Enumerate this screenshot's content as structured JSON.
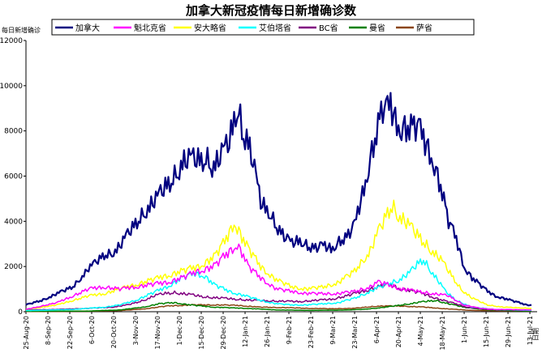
{
  "chart_data": {
    "type": "line",
    "title": "加拿大新冠疫情每日新增确诊数",
    "ylabel": "每日新增确诊",
    "xlabel": "日期",
    "ylim": [
      0,
      12000
    ],
    "yticks": [
      0,
      2000,
      4000,
      6000,
      8000,
      10000,
      12000
    ],
    "grid": false,
    "legend_position": "top",
    "x_tick_labels": [
      "25-Aug-20",
      "8-Sep-20",
      "22-Sep-20",
      "6-Oct-20",
      "20-Oct-20",
      "3-Nov-20",
      "17-Nov-20",
      "1-Dec-20",
      "15-Dec-20",
      "29-Dec-20",
      "12-Jan-21",
      "26-Jan-21",
      "9-Feb-21",
      "23-Feb-21",
      "9-Mar-21",
      "23-Mar-21",
      "6-Apr-21",
      "20-Apr-21",
      "4-May-21",
      "18-May-21",
      "1-Jun-21",
      "15-Jun-21",
      "29-Jun-21",
      "13-Jul-21"
    ],
    "x_tick_days": [
      0,
      14,
      28,
      42,
      56,
      70,
      84,
      98,
      112,
      126,
      140,
      154,
      168,
      182,
      196,
      210,
      224,
      238,
      252,
      266,
      280,
      294,
      308,
      322
    ],
    "x_range_days": [
      0,
      323
    ],
    "series": [
      {
        "name": "加拿大",
        "color": "#000080",
        "width": 2.2,
        "points": [
          [
            0,
            300
          ],
          [
            10,
            500
          ],
          [
            20,
            800
          ],
          [
            30,
            1100
          ],
          [
            40,
            1900
          ],
          [
            50,
            2500
          ],
          [
            55,
            2600
          ],
          [
            60,
            2900
          ],
          [
            70,
            3900
          ],
          [
            78,
            4600
          ],
          [
            84,
            5000
          ],
          [
            90,
            5600
          ],
          [
            95,
            6000
          ],
          [
            100,
            6600
          ],
          [
            105,
            6700
          ],
          [
            110,
            6700
          ],
          [
            115,
            6800
          ],
          [
            120,
            6400
          ],
          [
            126,
            7000
          ],
          [
            130,
            7500
          ],
          [
            134,
            8900
          ],
          [
            136,
            9000
          ],
          [
            138,
            8000
          ],
          [
            141,
            7700
          ],
          [
            145,
            6600
          ],
          [
            150,
            4800
          ],
          [
            155,
            4500
          ],
          [
            160,
            3800
          ],
          [
            165,
            3300
          ],
          [
            170,
            3000
          ],
          [
            175,
            3200
          ],
          [
            180,
            2900
          ],
          [
            185,
            2800
          ],
          [
            190,
            2900
          ],
          [
            195,
            2800
          ],
          [
            200,
            3100
          ],
          [
            205,
            3300
          ],
          [
            210,
            3800
          ],
          [
            215,
            5200
          ],
          [
            220,
            6800
          ],
          [
            225,
            8200
          ],
          [
            228,
            9000
          ],
          [
            230,
            8800
          ],
          [
            233,
            9100
          ],
          [
            236,
            8500
          ],
          [
            240,
            8200
          ],
          [
            245,
            8100
          ],
          [
            250,
            8200
          ],
          [
            255,
            7500
          ],
          [
            260,
            6800
          ],
          [
            265,
            5500
          ],
          [
            270,
            4000
          ],
          [
            275,
            3200
          ],
          [
            280,
            2000
          ],
          [
            285,
            1500
          ],
          [
            290,
            1200
          ],
          [
            295,
            900
          ],
          [
            300,
            700
          ],
          [
            305,
            600
          ],
          [
            310,
            500
          ],
          [
            315,
            400
          ],
          [
            320,
            300
          ],
          [
            323,
            300
          ]
        ]
      },
      {
        "name": "魁北克省",
        "color": "#ff00ff",
        "width": 1.5,
        "points": [
          [
            0,
            100
          ],
          [
            20,
            400
          ],
          [
            30,
            700
          ],
          [
            40,
            1000
          ],
          [
            50,
            1100
          ],
          [
            60,
            1000
          ],
          [
            70,
            1100
          ],
          [
            80,
            1200
          ],
          [
            90,
            1300
          ],
          [
            100,
            1500
          ],
          [
            110,
            1800
          ],
          [
            120,
            2000
          ],
          [
            126,
            2400
          ],
          [
            132,
            2800
          ],
          [
            135,
            3000
          ],
          [
            138,
            2600
          ],
          [
            142,
            2000
          ],
          [
            150,
            1500
          ],
          [
            160,
            1000
          ],
          [
            170,
            900
          ],
          [
            180,
            800
          ],
          [
            190,
            800
          ],
          [
            200,
            800
          ],
          [
            210,
            900
          ],
          [
            220,
            1100
          ],
          [
            225,
            1300
          ],
          [
            232,
            1200
          ],
          [
            240,
            1000
          ],
          [
            250,
            900
          ],
          [
            260,
            800
          ],
          [
            270,
            700
          ],
          [
            280,
            300
          ],
          [
            290,
            150
          ],
          [
            300,
            100
          ],
          [
            323,
            80
          ]
        ]
      },
      {
        "name": "安大略省",
        "color": "#ffff00",
        "width": 1.5,
        "points": [
          [
            0,
            100
          ],
          [
            20,
            300
          ],
          [
            30,
            500
          ],
          [
            40,
            700
          ],
          [
            50,
            800
          ],
          [
            60,
            1000
          ],
          [
            70,
            1200
          ],
          [
            80,
            1400
          ],
          [
            90,
            1600
          ],
          [
            100,
            1800
          ],
          [
            110,
            2000
          ],
          [
            120,
            2400
          ],
          [
            126,
            3000
          ],
          [
            130,
            3500
          ],
          [
            133,
            4000
          ],
          [
            136,
            3600
          ],
          [
            140,
            3000
          ],
          [
            145,
            2500
          ],
          [
            150,
            2000
          ],
          [
            160,
            1400
          ],
          [
            170,
            1100
          ],
          [
            180,
            1000
          ],
          [
            190,
            1100
          ],
          [
            200,
            1300
          ],
          [
            210,
            1800
          ],
          [
            220,
            2700
          ],
          [
            225,
            3500
          ],
          [
            230,
            4200
          ],
          [
            234,
            4700
          ],
          [
            238,
            4300
          ],
          [
            242,
            4000
          ],
          [
            250,
            3400
          ],
          [
            258,
            2800
          ],
          [
            265,
            2300
          ],
          [
            270,
            1800
          ],
          [
            278,
            1000
          ],
          [
            285,
            600
          ],
          [
            295,
            300
          ],
          [
            305,
            200
          ],
          [
            323,
            150
          ]
        ]
      },
      {
        "name": "艾伯塔省",
        "color": "#00ffff",
        "width": 1.5,
        "points": [
          [
            0,
            50
          ],
          [
            30,
            100
          ],
          [
            50,
            200
          ],
          [
            60,
            300
          ],
          [
            70,
            500
          ],
          [
            80,
            800
          ],
          [
            90,
            1100
          ],
          [
            100,
            1500
          ],
          [
            108,
            1700
          ],
          [
            114,
            1600
          ],
          [
            120,
            1200
          ],
          [
            130,
            900
          ],
          [
            140,
            700
          ],
          [
            150,
            500
          ],
          [
            160,
            350
          ],
          [
            170,
            300
          ],
          [
            180,
            300
          ],
          [
            190,
            350
          ],
          [
            200,
            400
          ],
          [
            210,
            600
          ],
          [
            220,
            900
          ],
          [
            230,
            1200
          ],
          [
            238,
            1400
          ],
          [
            245,
            1700
          ],
          [
            250,
            2100
          ],
          [
            254,
            2300
          ],
          [
            258,
            1900
          ],
          [
            262,
            1500
          ],
          [
            268,
            900
          ],
          [
            275,
            500
          ],
          [
            285,
            200
          ],
          [
            300,
            100
          ],
          [
            323,
            60
          ]
        ]
      },
      {
        "name": "BC省",
        "color": "#800080",
        "width": 1.5,
        "points": [
          [
            0,
            80
          ],
          [
            20,
            100
          ],
          [
            40,
            150
          ],
          [
            55,
            200
          ],
          [
            65,
            300
          ],
          [
            75,
            500
          ],
          [
            82,
            700
          ],
          [
            88,
            800
          ],
          [
            95,
            850
          ],
          [
            105,
            750
          ],
          [
            115,
            650
          ],
          [
            125,
            600
          ],
          [
            135,
            550
          ],
          [
            145,
            500
          ],
          [
            155,
            480
          ],
          [
            165,
            460
          ],
          [
            175,
            450
          ],
          [
            185,
            500
          ],
          [
            195,
            550
          ],
          [
            205,
            700
          ],
          [
            215,
            900
          ],
          [
            225,
            1100
          ],
          [
            232,
            1200
          ],
          [
            240,
            1000
          ],
          [
            248,
            900
          ],
          [
            256,
            750
          ],
          [
            264,
            550
          ],
          [
            272,
            400
          ],
          [
            282,
            200
          ],
          [
            295,
            100
          ],
          [
            323,
            60
          ]
        ]
      },
      {
        "name": "曼省",
        "color": "#008000",
        "width": 1.5,
        "points": [
          [
            0,
            20
          ],
          [
            40,
            30
          ],
          [
            60,
            80
          ],
          [
            75,
            200
          ],
          [
            85,
            350
          ],
          [
            95,
            400
          ],
          [
            105,
            300
          ],
          [
            120,
            200
          ],
          [
            140,
            150
          ],
          [
            160,
            80
          ],
          [
            180,
            60
          ],
          [
            200,
            70
          ],
          [
            215,
            100
          ],
          [
            230,
            200
          ],
          [
            245,
            350
          ],
          [
            255,
            450
          ],
          [
            262,
            500
          ],
          [
            270,
            350
          ],
          [
            280,
            200
          ],
          [
            295,
            80
          ],
          [
            323,
            30
          ]
        ]
      },
      {
        "name": "萨省",
        "color": "#8b4513",
        "width": 1.5,
        "points": [
          [
            0,
            10
          ],
          [
            40,
            20
          ],
          [
            60,
            50
          ],
          [
            75,
            120
          ],
          [
            90,
            250
          ],
          [
            105,
            300
          ],
          [
            120,
            300
          ],
          [
            135,
            280
          ],
          [
            150,
            200
          ],
          [
            165,
            180
          ],
          [
            180,
            150
          ],
          [
            195,
            130
          ],
          [
            210,
            150
          ],
          [
            225,
            250
          ],
          [
            240,
            250
          ],
          [
            255,
            200
          ],
          [
            270,
            120
          ],
          [
            285,
            60
          ],
          [
            300,
            40
          ],
          [
            323,
            30
          ]
        ]
      }
    ]
  }
}
